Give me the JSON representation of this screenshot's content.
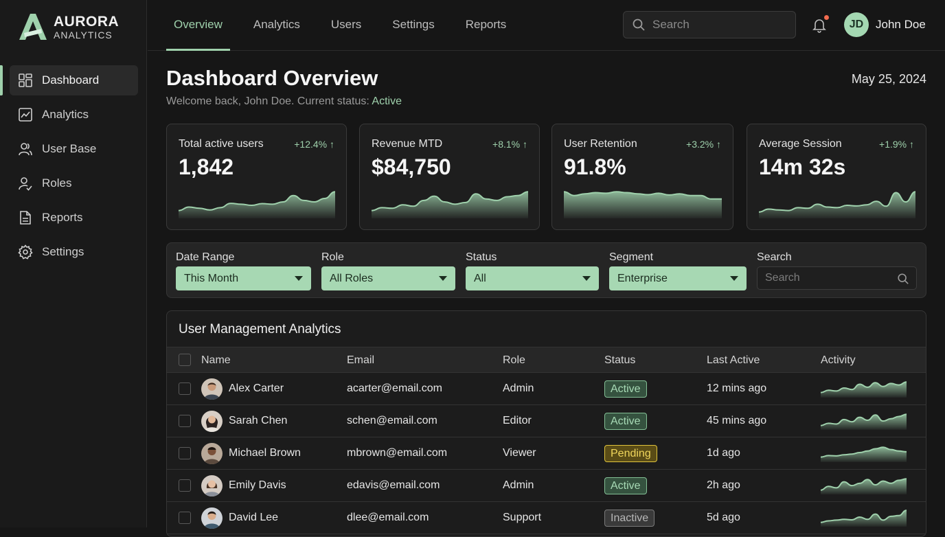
{
  "brand": {
    "title": "AURORA",
    "subtitle": "ANALYTICS",
    "accent": "#9fd1ac"
  },
  "sidebar": {
    "items": [
      {
        "label": "Dashboard",
        "icon": "grid-icon",
        "active": true
      },
      {
        "label": "Analytics",
        "icon": "chart-icon",
        "active": false
      },
      {
        "label": "User Base",
        "icon": "users-icon",
        "active": false
      },
      {
        "label": "Roles",
        "icon": "user-check-icon",
        "active": false
      },
      {
        "label": "Reports",
        "icon": "document-icon",
        "active": false
      },
      {
        "label": "Settings",
        "icon": "gear-icon",
        "active": false
      }
    ]
  },
  "header": {
    "tabs": [
      {
        "label": "Overview",
        "active": true
      },
      {
        "label": "Analytics",
        "active": false
      },
      {
        "label": "Users",
        "active": false
      },
      {
        "label": "Settings",
        "active": false
      },
      {
        "label": "Reports",
        "active": false
      }
    ],
    "search_placeholder": "Search",
    "avatar_initials": "JD",
    "user_name": "John Doe"
  },
  "page": {
    "title": "Dashboard Overview",
    "welcome": "Welcome back, John Doe. Current status:",
    "status": "Active",
    "date": "May 25, 2024"
  },
  "kpis": [
    {
      "label": "Total active users",
      "delta": "+12.4% ↑",
      "value": "1,842",
      "trend": [
        0.2,
        0.32,
        0.28,
        0.22,
        0.3,
        0.45,
        0.42,
        0.38,
        0.44,
        0.42,
        0.5,
        0.72,
        0.55,
        0.5,
        0.62,
        0.85
      ]
    },
    {
      "label": "Revenue MTD",
      "delta": "+8.1% ↑",
      "value": "$84,750",
      "trend": [
        0.2,
        0.3,
        0.28,
        0.4,
        0.35,
        0.55,
        0.7,
        0.5,
        0.42,
        0.48,
        0.78,
        0.6,
        0.55,
        0.68,
        0.72,
        0.85
      ]
    },
    {
      "label": "User Retention",
      "delta": "+3.2% ↑",
      "value": "91.8%",
      "trend": [
        0.85,
        0.72,
        0.78,
        0.82,
        0.8,
        0.85,
        0.82,
        0.78,
        0.75,
        0.8,
        0.74,
        0.78,
        0.72,
        0.72,
        0.6,
        0.6
      ]
    },
    {
      "label": "Average Session",
      "delta": "+1.9% ↑",
      "value": "14m 32s",
      "trend": [
        0.15,
        0.25,
        0.22,
        0.2,
        0.3,
        0.28,
        0.42,
        0.32,
        0.3,
        0.38,
        0.36,
        0.4,
        0.52,
        0.35,
        0.82,
        0.5,
        0.85
      ]
    }
  ],
  "filters": {
    "date_range": {
      "label": "Date Range",
      "value": "This Month"
    },
    "role": {
      "label": "Role",
      "value": "All Roles"
    },
    "status": {
      "label": "Status",
      "value": "All"
    },
    "segment": {
      "label": "Segment",
      "value": "Enterprise"
    },
    "search": {
      "label": "Search",
      "placeholder": "Search"
    }
  },
  "table": {
    "title": "User Management Analytics",
    "columns": [
      "Name",
      "Email",
      "Role",
      "Status",
      "Last Active",
      "Activity"
    ],
    "rows": [
      {
        "name": "Alex Carter",
        "email": "acarter@email.com",
        "role": "Admin",
        "status": "Active",
        "status_type": "active",
        "last_active": "12 mins ago",
        "activity": [
          0.2,
          0.35,
          0.3,
          0.5,
          0.4,
          0.75,
          0.55,
          0.85,
          0.6,
          0.8,
          0.7,
          0.9
        ]
      },
      {
        "name": "Sarah Chen",
        "email": "schen@email.com",
        "role": "Editor",
        "status": "Active",
        "status_type": "active",
        "last_active": "45 mins ago",
        "activity": [
          0.15,
          0.3,
          0.25,
          0.55,
          0.4,
          0.7,
          0.5,
          0.85,
          0.45,
          0.6,
          0.75,
          0.9
        ]
      },
      {
        "name": "Michael Brown",
        "email": "mbrown@email.com",
        "role": "Viewer",
        "status": "Pending",
        "status_type": "pending",
        "last_active": "1d ago",
        "activity": [
          0.2,
          0.3,
          0.28,
          0.35,
          0.4,
          0.5,
          0.6,
          0.75,
          0.85,
          0.7,
          0.6,
          0.55
        ]
      },
      {
        "name": "Emily Davis",
        "email": "edavis@email.com",
        "role": "Admin",
        "status": "Active",
        "status_type": "active",
        "last_active": "2h ago",
        "activity": [
          0.15,
          0.4,
          0.3,
          0.7,
          0.45,
          0.6,
          0.85,
          0.5,
          0.75,
          0.6,
          0.8,
          0.9
        ]
      },
      {
        "name": "David Lee",
        "email": "dlee@email.com",
        "role": "Support",
        "status": "Inactive",
        "status_type": "inactive",
        "last_active": "5d ago",
        "activity": [
          0.15,
          0.25,
          0.3,
          0.35,
          0.32,
          0.5,
          0.35,
          0.7,
          0.3,
          0.55,
          0.6,
          0.95
        ]
      }
    ]
  }
}
